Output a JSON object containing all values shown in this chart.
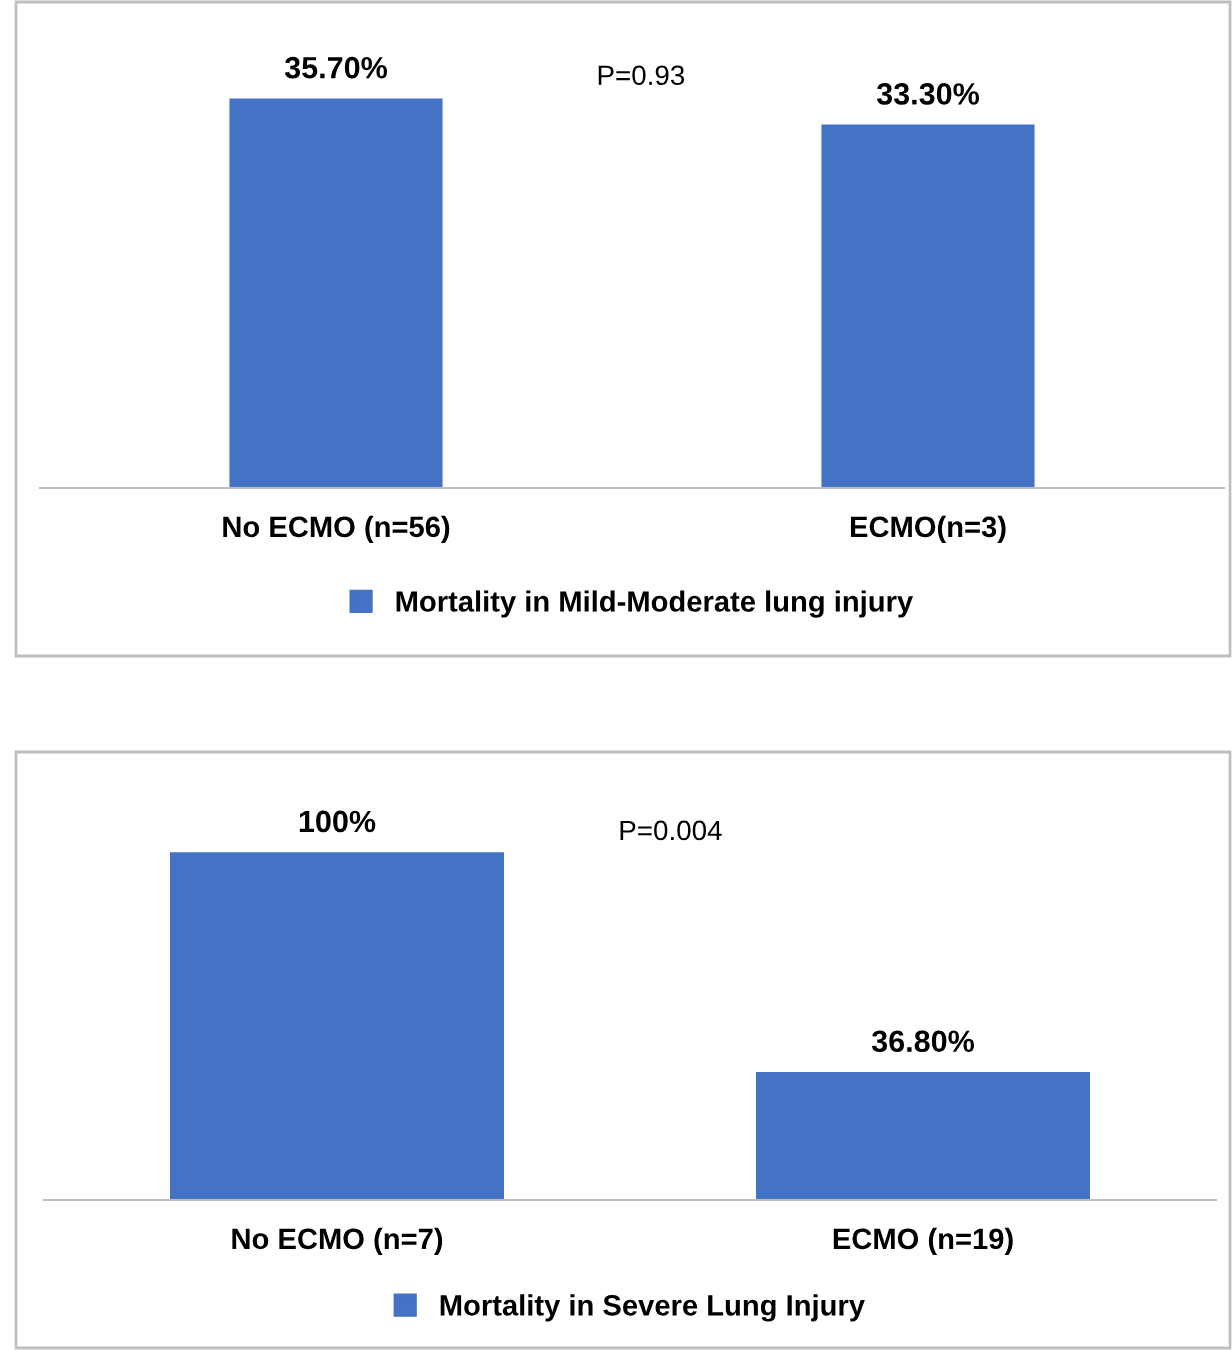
{
  "chart_data": [
    {
      "type": "bar",
      "categories": [
        "No ECMO (n=56)",
        "ECMO(n=3)"
      ],
      "series": [
        {
          "name": "Mortality in Mild-Moderate lung injury",
          "color": "#4472c4",
          "values": [
            35.7,
            33.3
          ],
          "value_labels": [
            "35.70%",
            "33.30%"
          ]
        }
      ],
      "annotations": [
        "P=0.93"
      ],
      "legend": "bottom"
    },
    {
      "type": "bar",
      "categories": [
        "No ECMO (n=7)",
        "ECMO (n=19)"
      ],
      "series": [
        {
          "name": "Mortality in Severe Lung Injury",
          "color": "#4472c4",
          "values": [
            100,
            36.8
          ],
          "value_labels": [
            "100%",
            "36.80%"
          ]
        }
      ],
      "annotations": [
        "P=0.004"
      ],
      "legend": "bottom"
    }
  ]
}
